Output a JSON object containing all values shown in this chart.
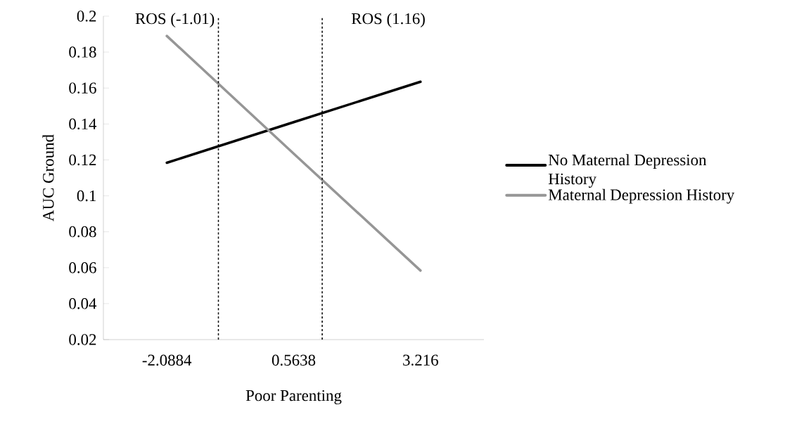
{
  "chart_data": {
    "type": "line",
    "xlabel": "Poor Parenting",
    "ylabel": "AUC Ground",
    "x": [
      -2.0884,
      0.5638,
      3.216
    ],
    "series": [
      {
        "name": "No Maternal Depression History",
        "color": "#000000",
        "values": [
          0.1184,
          0.141,
          0.1635
        ]
      },
      {
        "name": "Maternal Depression History",
        "color": "#969696",
        "values": [
          0.189,
          0.1235,
          0.0584
        ]
      }
    ],
    "xlim": [
      -3.4145,
      4.5421
    ],
    "xticks": [
      -2.0884,
      0.5638,
      3.216
    ],
    "ylim": [
      0.02,
      0.2
    ],
    "yticks": [
      0.02,
      0.04,
      0.06,
      0.08,
      0.1,
      0.12,
      0.14,
      0.16,
      0.18,
      0.2
    ],
    "ref_lines": [
      {
        "axis": "x",
        "value": -1.01,
        "label": "ROS (-1.01)",
        "color": "#000000",
        "line_style": "dashed"
      },
      {
        "axis": "x",
        "value": 1.16,
        "label": "ROS (1.16)",
        "color": "#000000",
        "line_style": "dashed"
      }
    ],
    "legend": "right",
    "grid": false,
    "marker": "none",
    "line_style": "solid"
  }
}
